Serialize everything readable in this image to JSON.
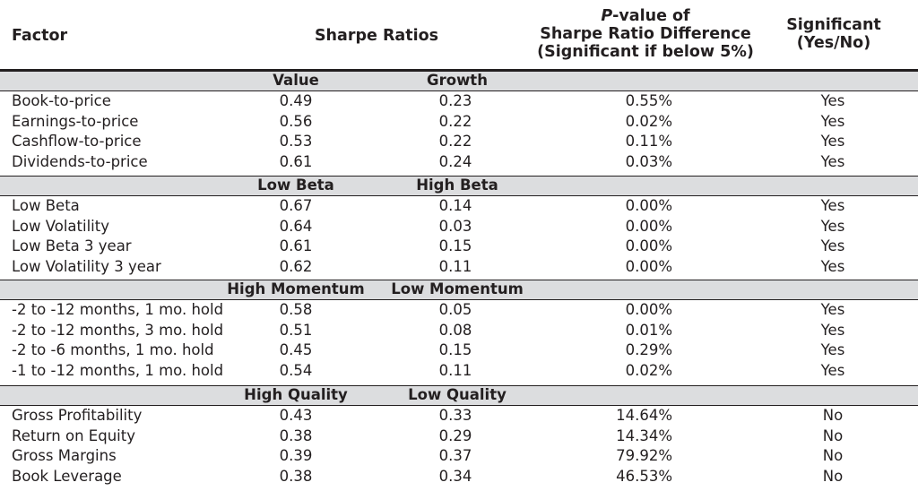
{
  "header": {
    "factor": "Factor",
    "sharpe": "Sharpe Ratios",
    "pvalue_line1_italic": "P",
    "pvalue_line1_rest": "-value of",
    "pvalue_line2": "Sharpe Ratio Difference",
    "pvalue_line3": "(Significant if below 5%)",
    "significant_line1": "Significant",
    "significant_line2": "(Yes/No)"
  },
  "groups": [
    {
      "label_a": "Value",
      "label_b": "Growth",
      "rows": [
        {
          "factor": "Book-to-price",
          "a": "0.49",
          "b": "0.23",
          "p": "0.55%",
          "sig": "Yes"
        },
        {
          "factor": "Earnings-to-price",
          "a": "0.56",
          "b": "0.22",
          "p": "0.02%",
          "sig": "Yes"
        },
        {
          "factor": "Cashflow-to-price",
          "a": "0.53",
          "b": "0.22",
          "p": "0.11%",
          "sig": "Yes"
        },
        {
          "factor": "Dividends-to-price",
          "a": "0.61",
          "b": "0.24",
          "p": "0.03%",
          "sig": "Yes"
        }
      ]
    },
    {
      "label_a": "Low Beta",
      "label_b": "High Beta",
      "rows": [
        {
          "factor": "Low Beta",
          "a": "0.67",
          "b": "0.14",
          "p": "0.00%",
          "sig": "Yes"
        },
        {
          "factor": "Low Volatility",
          "a": "0.64",
          "b": "0.03",
          "p": "0.00%",
          "sig": "Yes"
        },
        {
          "factor": "Low Beta 3 year",
          "a": "0.61",
          "b": "0.15",
          "p": "0.00%",
          "sig": "Yes"
        },
        {
          "factor": "Low Volatility 3 year",
          "a": "0.62",
          "b": "0.11",
          "p": "0.00%",
          "sig": "Yes"
        }
      ]
    },
    {
      "label_a": "High Momentum",
      "label_b": "Low Momentum",
      "rows": [
        {
          "factor": "-2 to -12 months, 1 mo. hold",
          "a": "0.58",
          "b": "0.05",
          "p": "0.00%",
          "sig": "Yes"
        },
        {
          "factor": "-2 to -12 months, 3 mo. hold",
          "a": "0.51",
          "b": "0.08",
          "p": "0.01%",
          "sig": "Yes"
        },
        {
          "factor": "-2 to -6 months, 1 mo. hold",
          "a": "0.45",
          "b": "0.15",
          "p": "0.29%",
          "sig": "Yes"
        },
        {
          "factor": "-1 to -12 months, 1 mo. hold",
          "a": "0.54",
          "b": "0.11",
          "p": "0.02%",
          "sig": "Yes"
        }
      ]
    },
    {
      "label_a": "High Quality",
      "label_b": "Low Quality",
      "rows": [
        {
          "factor": "Gross Profitability",
          "a": "0.43",
          "b": "0.33",
          "p": "14.64%",
          "sig": "No"
        },
        {
          "factor": "Return on Equity",
          "a": "0.38",
          "b": "0.29",
          "p": "14.34%",
          "sig": "No"
        },
        {
          "factor": "Gross Margins",
          "a": "0.39",
          "b": "0.37",
          "p": "79.92%",
          "sig": "No"
        },
        {
          "factor": "Book Leverage",
          "a": "0.38",
          "b": "0.34",
          "p": "46.53%",
          "sig": "No"
        }
      ]
    }
  ]
}
